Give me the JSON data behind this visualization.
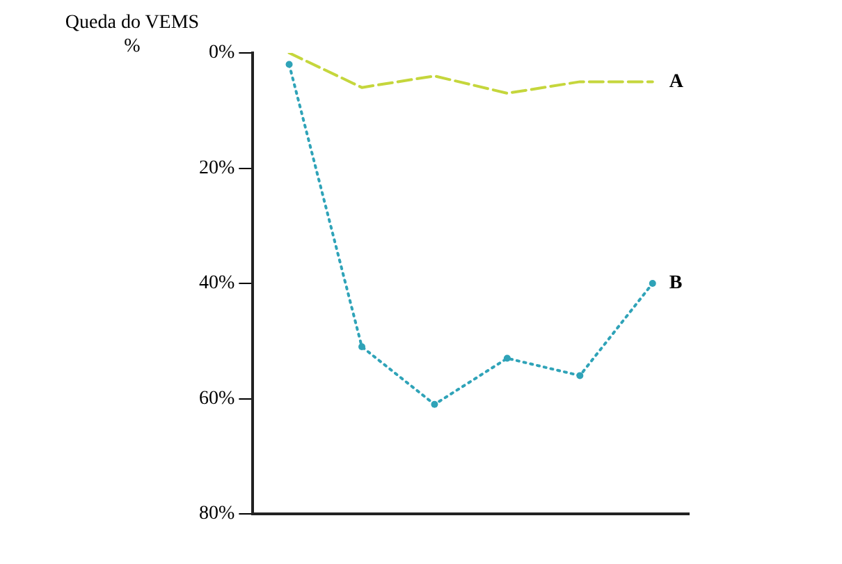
{
  "chart_data": {
    "type": "line",
    "ylabel": "Queda do VEMS %",
    "categories": [
      null,
      null,
      null,
      null,
      null,
      null
    ],
    "series": [
      {
        "name": "A",
        "color": "#c5d63c",
        "values": [
          0,
          6,
          4,
          7,
          5,
          5
        ],
        "line_style": "dashed",
        "marker": "none"
      },
      {
        "name": "B",
        "color": "#2fa3b8",
        "values": [
          2,
          51,
          61,
          53,
          56,
          40
        ],
        "line_style": "dotted",
        "marker": "circle"
      }
    ],
    "ylim": [
      80,
      0
    ],
    "yticks": [
      {
        "value": 0,
        "label": "0%"
      },
      {
        "value": 20,
        "label": "20%"
      },
      {
        "value": 40,
        "label": "40%"
      },
      {
        "value": 60,
        "label": "60%"
      },
      {
        "value": 80,
        "label": "80%"
      }
    ],
    "grid": false,
    "legend": false,
    "tick_labels": "y"
  }
}
